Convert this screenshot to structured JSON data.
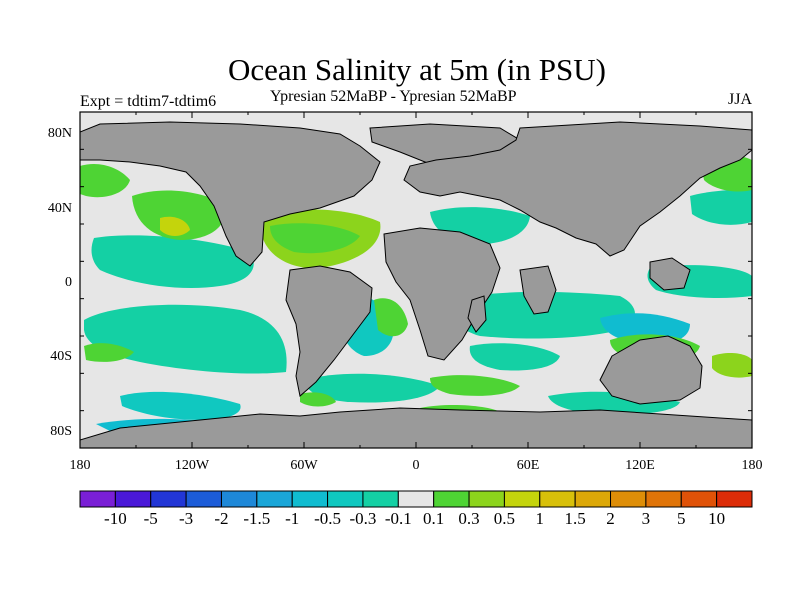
{
  "title": "Ocean Salinity at 5m (in PSU)",
  "subtitle_left": "Expt = tdtim7-tdtim6",
  "subtitle_center": "Ypresian  52MaBP - Ypresian  52MaBP",
  "subtitle_right": "JJA",
  "axes": {
    "lat_ticks": [
      "80N",
      "40N",
      "0",
      "40S",
      "80S"
    ],
    "lon_ticks": [
      "180",
      "120W",
      "60W",
      "0",
      "60E",
      "120E",
      "180"
    ]
  },
  "colorbar": {
    "labels": [
      "-10",
      "-5",
      "-3",
      "-2",
      "-1.5",
      "-1",
      "-0.5",
      "-0.3",
      "-0.1",
      "0.1",
      "0.3",
      "0.5",
      "1",
      "1.5",
      "2",
      "3",
      "5",
      "10"
    ],
    "colors": [
      "#7a1fd6",
      "#4a18d8",
      "#2236d6",
      "#1c5cd8",
      "#1e88d8",
      "#1aa6d8",
      "#10bcd0",
      "#10c8c0",
      "#14d0a4",
      "#e6e6e6",
      "#4ed434",
      "#8cd41c",
      "#c4d40c",
      "#d8c00a",
      "#dca808",
      "#de8e08",
      "#e07408",
      "#e05208",
      "#dc2c08"
    ]
  },
  "colors": {
    "land": "#9a9a9a",
    "zero": "#e6e6e6",
    "neg_small": "#14d0a4",
    "neg_mid": "#10c8c0",
    "neg_large": "#10bcd0",
    "pos_small": "#4ed434",
    "pos_mid": "#8cd41c",
    "pos_large": "#c4d40c"
  }
}
